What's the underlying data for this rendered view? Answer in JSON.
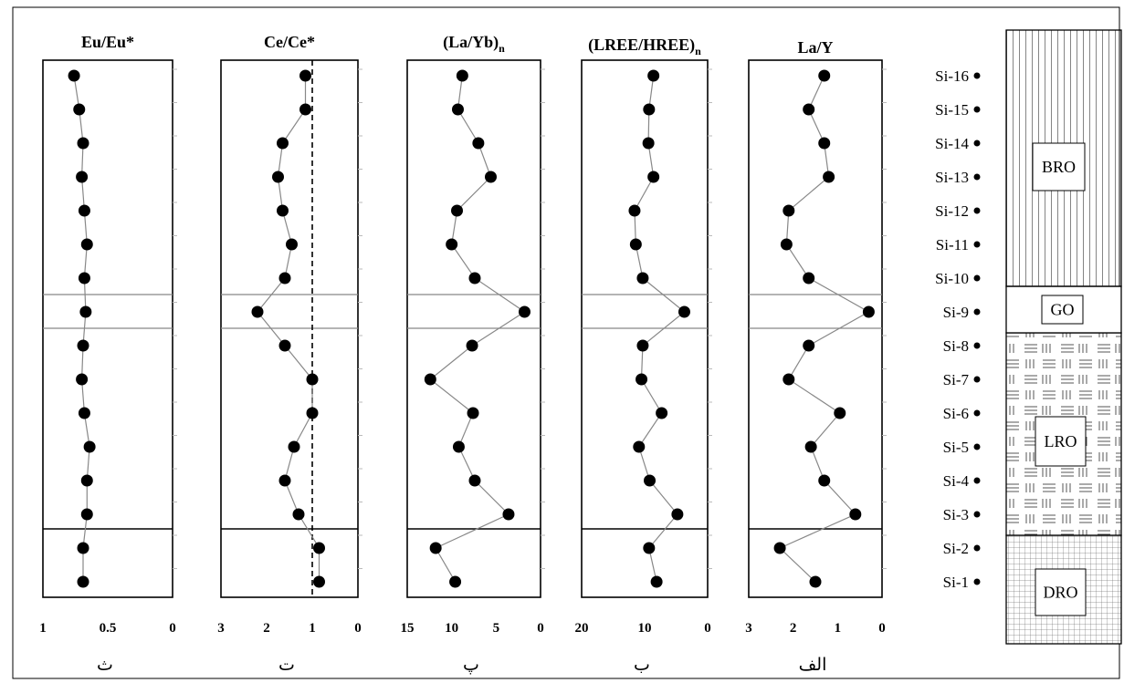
{
  "chart_data": [
    {
      "type": "line",
      "title": "Eu/Eu*",
      "panel_label": "ث",
      "xlim": [
        1,
        0
      ],
      "x_reversed": true,
      "xticks": [
        "1",
        "0.5",
        "0"
      ],
      "samples": [
        "Si-1",
        "Si-2",
        "Si-3",
        "Si-4",
        "Si-5",
        "Si-6",
        "Si-7",
        "Si-8",
        "Si-9",
        "Si-10",
        "Si-11",
        "Si-12",
        "Si-13",
        "Si-14",
        "Si-15",
        "Si-16"
      ],
      "values": [
        0.69,
        0.69,
        0.66,
        0.66,
        0.64,
        0.68,
        0.7,
        0.69,
        0.67,
        0.68,
        0.66,
        0.68,
        0.7,
        0.69,
        0.72,
        0.76
      ]
    },
    {
      "type": "line",
      "title": "Ce/Ce*",
      "panel_label": "ت",
      "xlim": [
        3,
        0
      ],
      "x_reversed": true,
      "xticks": [
        "3",
        "2",
        "1",
        "0"
      ],
      "reference_line": 1,
      "samples": [
        "Si-1",
        "Si-2",
        "Si-3",
        "Si-4",
        "Si-5",
        "Si-6",
        "Si-7",
        "Si-8",
        "Si-9",
        "Si-10",
        "Si-11",
        "Si-12",
        "Si-13",
        "Si-14",
        "Si-15",
        "Si-16"
      ],
      "values": [
        0.85,
        0.85,
        1.3,
        1.6,
        1.4,
        1.0,
        1.0,
        1.6,
        2.2,
        1.6,
        1.45,
        1.65,
        1.75,
        1.65,
        1.15,
        1.15
      ]
    },
    {
      "type": "line",
      "title": "(La/Yb)",
      "title_sub": "n",
      "panel_label": "پ",
      "xlim": [
        15,
        0
      ],
      "x_reversed": true,
      "xticks": [
        "15",
        "10",
        "5",
        "0"
      ],
      "samples": [
        "Si-1",
        "Si-2",
        "Si-3",
        "Si-4",
        "Si-5",
        "Si-6",
        "Si-7",
        "Si-8",
        "Si-9",
        "Si-10",
        "Si-11",
        "Si-12",
        "Si-13",
        "Si-14",
        "Si-15",
        "Si-16"
      ],
      "values": [
        9.6,
        11.8,
        3.6,
        7.4,
        9.2,
        7.6,
        12.4,
        7.7,
        1.8,
        7.4,
        10.0,
        9.4,
        5.6,
        7.0,
        9.3,
        8.8
      ]
    },
    {
      "type": "line",
      "title": "(LREE/HREE)",
      "title_sub": "n",
      "panel_label": "ب",
      "xlim": [
        20,
        0
      ],
      "x_reversed": true,
      "xticks": [
        "20",
        "10",
        "0"
      ],
      "samples": [
        "Si-1",
        "Si-2",
        "Si-3",
        "Si-4",
        "Si-5",
        "Si-6",
        "Si-7",
        "Si-8",
        "Si-9",
        "Si-10",
        "Si-11",
        "Si-12",
        "Si-13",
        "Si-14",
        "Si-15",
        "Si-16"
      ],
      "values": [
        8.1,
        9.3,
        4.8,
        9.2,
        10.9,
        7.3,
        10.5,
        10.3,
        3.7,
        10.3,
        11.4,
        11.6,
        8.6,
        9.4,
        9.3,
        8.6
      ]
    },
    {
      "type": "line",
      "title": "La/Y",
      "panel_label": "الف",
      "xlim": [
        3,
        0
      ],
      "x_reversed": true,
      "xticks": [
        "3",
        "2",
        "1",
        "0"
      ],
      "samples": [
        "Si-1",
        "Si-2",
        "Si-3",
        "Si-4",
        "Si-5",
        "Si-6",
        "Si-7",
        "Si-8",
        "Si-9",
        "Si-10",
        "Si-11",
        "Si-12",
        "Si-13",
        "Si-14",
        "Si-15",
        "Si-16"
      ],
      "values": [
        1.5,
        2.3,
        0.6,
        1.3,
        1.6,
        0.95,
        2.1,
        1.65,
        0.3,
        1.65,
        2.15,
        2.1,
        1.2,
        1.3,
        1.65,
        1.3
      ]
    }
  ],
  "samples": [
    "Si-1",
    "Si-2",
    "Si-3",
    "Si-4",
    "Si-5",
    "Si-6",
    "Si-7",
    "Si-8",
    "Si-9",
    "Si-10",
    "Si-11",
    "Si-12",
    "Si-13",
    "Si-14",
    "Si-15",
    "Si-16"
  ],
  "units": [
    {
      "label": "DRO",
      "from": 1,
      "to": 2,
      "pattern": "grid"
    },
    {
      "label": "LRO",
      "from": 3,
      "to": 8,
      "pattern": "mixed"
    },
    {
      "label": "GO",
      "from": 9,
      "to": 9,
      "pattern": "blank"
    },
    {
      "label": "BRO",
      "from": 10,
      "to": 16,
      "pattern": "vertical"
    }
  ]
}
